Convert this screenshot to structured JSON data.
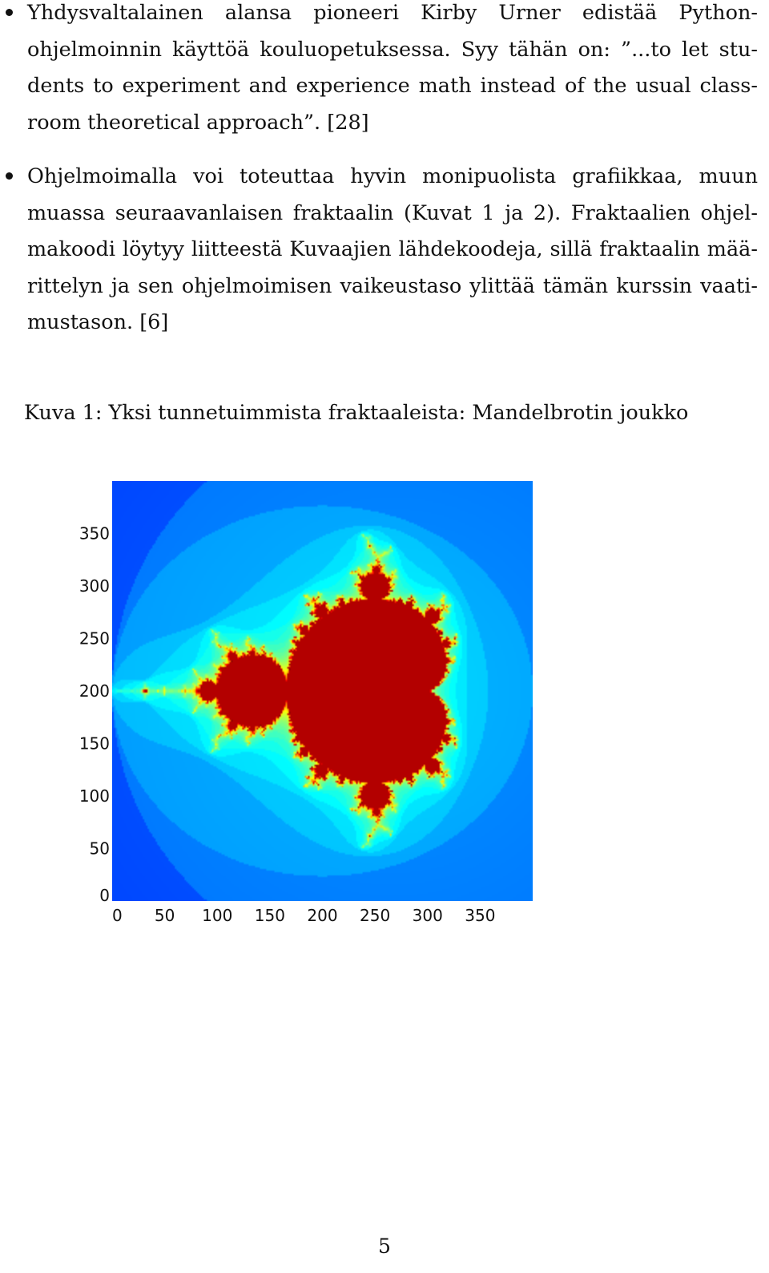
{
  "bullets": [
    {
      "text": "Yhdysvaltalainen alansa pioneeri Kirby Urner edistää Python-ohjelmoinnin käyttöä kouluopetuksessa. Syy tähän on: ”...to let stu­dents to experiment and experience math instead of the usual class­room theoretical approach”. [28]"
    },
    {
      "text": "Ohjelmoimalla voi toteuttaa hyvin monipuolista grafiikkaa, muun muassa seuraavanlaisen fraktaalin (Kuvat 1 ja 2). Fraktaalien ohjel­makoodi löytyy liitteestä Kuvaajien lähdekoodeja, sillä fraktaalin mää­rittelyn ja sen ohjelmoimisen vaikeustaso ylittää tämän kurssin vaati­mustason. [6]"
    }
  ],
  "figure": {
    "caption": "Kuva 1: Yksi tunnetuimmista fraktaaleista: Mandelbrotin joukko"
  },
  "chart_data": {
    "type": "heatmap",
    "title": "",
    "xlabel": "",
    "ylabel": "",
    "xlim": [
      0,
      400
    ],
    "ylim": [
      0,
      400
    ],
    "x_ticks": [
      0,
      50,
      100,
      150,
      200,
      250,
      300,
      350
    ],
    "y_ticks": [
      0,
      50,
      100,
      150,
      200,
      250,
      300,
      350
    ],
    "x_tick_labels": [
      "0",
      "50",
      "100",
      "150",
      "200",
      "250",
      "300",
      "350"
    ],
    "y_tick_labels": [
      "0",
      "50",
      "100",
      "150",
      "200",
      "250",
      "300",
      "350"
    ],
    "grid": false,
    "colormap": "jet",
    "colors": {
      "inside": "#b30000",
      "background": "#0a1a9e",
      "outer_edge": "#00008f"
    },
    "content": "Mandelbrot set escape-time image",
    "complex_range": {
      "re": [
        -2.0,
        1.0
      ],
      "im": [
        -1.5,
        1.5
      ]
    },
    "max_iterations": 60
  },
  "page_number": "5"
}
